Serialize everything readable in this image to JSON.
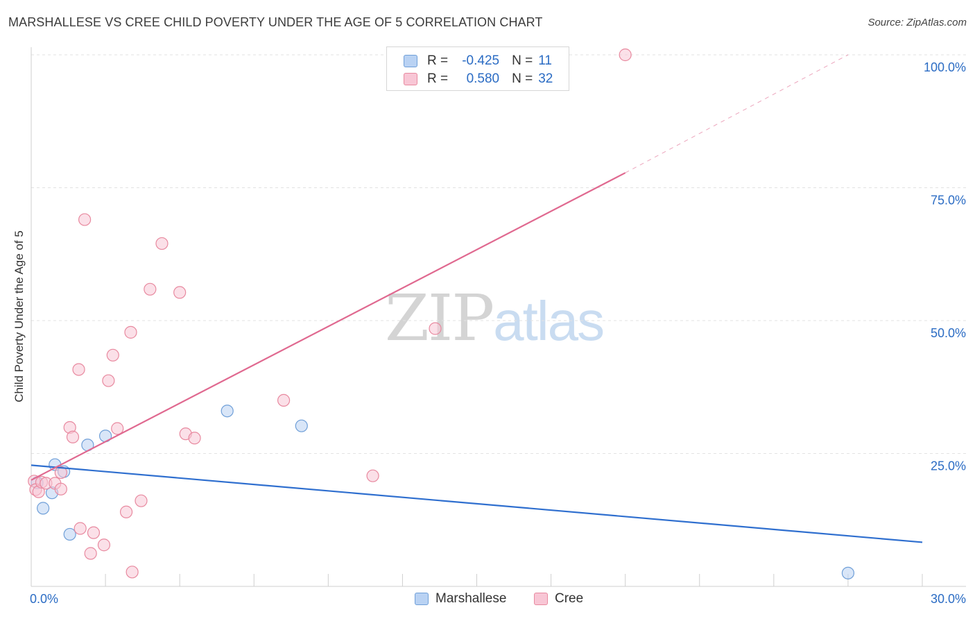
{
  "title": "MARSHALLESE VS CREE CHILD POVERTY UNDER THE AGE OF 5 CORRELATION CHART",
  "source": "Source: ZipAtlas.com",
  "watermark": {
    "zip": "ZIP",
    "atlas": "atlas"
  },
  "legend": {
    "rows": [
      {
        "r_label": "R =",
        "r_value": "-0.425",
        "n_label": "N =",
        "n_value": "11",
        "fill": "#b9d2f3",
        "stroke": "#6f9fd8"
      },
      {
        "r_label": "R =",
        "r_value": "0.580",
        "n_label": "N =",
        "n_value": "32",
        "fill": "#f8c6d5",
        "stroke": "#e8899f"
      }
    ]
  },
  "bottom_legend": [
    {
      "label": "Marshallese",
      "fill": "#b9d2f3",
      "stroke": "#6f9fd8"
    },
    {
      "label": "Cree",
      "fill": "#f8c6d5",
      "stroke": "#e8899f"
    }
  ],
  "chart_data": {
    "type": "scatter",
    "title": "MARSHALLESE VS CREE CHILD POVERTY UNDER THE AGE OF 5 CORRELATION CHART",
    "xlabel": "",
    "ylabel": "Child Poverty Under the Age of 5",
    "xlim": [
      0,
      30
    ],
    "ylim": [
      0,
      100
    ],
    "x_tick_labels": [
      {
        "value": 0,
        "label": "0.0%"
      },
      {
        "value": 30,
        "label": "30.0%"
      }
    ],
    "y_tick_labels": [
      {
        "value": 100,
        "label": "100.0%"
      },
      {
        "value": 75,
        "label": "75.0%"
      },
      {
        "value": 50,
        "label": "50.0%"
      },
      {
        "value": 25,
        "label": "25.0%"
      }
    ],
    "grid": true,
    "series": [
      {
        "name": "Marshallese",
        "color": "#6f9fd8",
        "fill": "#b9d2f3",
        "line_color": "#2f6fcf",
        "points": [
          {
            "x": 0.2,
            "y": 19.5
          },
          {
            "x": 0.4,
            "y": 14.7
          },
          {
            "x": 0.7,
            "y": 17.6
          },
          {
            "x": 0.8,
            "y": 22.9
          },
          {
            "x": 1.1,
            "y": 21.6
          },
          {
            "x": 1.3,
            "y": 9.8
          },
          {
            "x": 1.9,
            "y": 26.6
          },
          {
            "x": 2.5,
            "y": 28.3
          },
          {
            "x": 6.6,
            "y": 33.0
          },
          {
            "x": 9.1,
            "y": 30.2
          },
          {
            "x": 27.5,
            "y": 2.5
          }
        ],
        "trend": {
          "x": [
            0,
            30
          ],
          "y": [
            22.8,
            8.3
          ],
          "dashed_extension": false
        }
      },
      {
        "name": "Cree",
        "color": "#e8899f",
        "fill": "#f8c6d5",
        "line_color": "#e06990",
        "points": [
          {
            "x": 0.1,
            "y": 19.8
          },
          {
            "x": 0.15,
            "y": 18.2
          },
          {
            "x": 0.25,
            "y": 17.8
          },
          {
            "x": 0.35,
            "y": 19.6
          },
          {
            "x": 0.5,
            "y": 19.4
          },
          {
            "x": 0.8,
            "y": 19.4
          },
          {
            "x": 1.0,
            "y": 18.3
          },
          {
            "x": 1.0,
            "y": 21.4
          },
          {
            "x": 1.3,
            "y": 29.9
          },
          {
            "x": 1.4,
            "y": 28.1
          },
          {
            "x": 1.6,
            "y": 40.8
          },
          {
            "x": 1.65,
            "y": 10.9
          },
          {
            "x": 1.8,
            "y": 69.0
          },
          {
            "x": 2.0,
            "y": 6.2
          },
          {
            "x": 2.1,
            "y": 10.1
          },
          {
            "x": 2.45,
            "y": 7.8
          },
          {
            "x": 2.6,
            "y": 38.7
          },
          {
            "x": 2.75,
            "y": 43.5
          },
          {
            "x": 2.9,
            "y": 29.7
          },
          {
            "x": 3.2,
            "y": 14.0
          },
          {
            "x": 3.35,
            "y": 47.8
          },
          {
            "x": 3.4,
            "y": 2.7
          },
          {
            "x": 3.7,
            "y": 16.1
          },
          {
            "x": 4.0,
            "y": 55.9
          },
          {
            "x": 4.4,
            "y": 64.5
          },
          {
            "x": 5.0,
            "y": 55.3
          },
          {
            "x": 5.2,
            "y": 28.7
          },
          {
            "x": 5.5,
            "y": 27.9
          },
          {
            "x": 8.5,
            "y": 35.0
          },
          {
            "x": 11.5,
            "y": 20.8
          },
          {
            "x": 13.6,
            "y": 48.5
          },
          {
            "x": 20.0,
            "y": 100.0
          }
        ],
        "trend": {
          "x": [
            0,
            20
          ],
          "y": [
            20.0,
            77.8
          ],
          "dashed_extension": true,
          "dashed_to": {
            "x": 27.5,
            "y": 100.0
          }
        }
      }
    ]
  }
}
